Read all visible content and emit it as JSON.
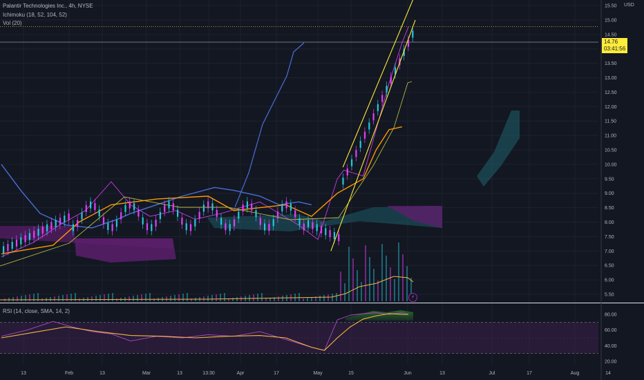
{
  "header": {
    "symbol": "Palantir Technologies Inc., 4h, NYSE",
    "ichimoku_label": "Ichimoku (18, 52, 104, 52)",
    "volume_label": "Vol (20)",
    "rsi_label": "RSI (14, close, SMA, 14, 2)",
    "currency": "USD"
  },
  "price_badge": {
    "price": "14.76",
    "countdown": "03:41:56"
  },
  "event_icon": "lightning-icon",
  "colors": {
    "background": "#131722",
    "price_line_blue": "#4a6fd8",
    "kijun_orange": "#ff9800",
    "senkou_b_olive": "#b5b841",
    "trendline_yellow": "#ffeb3b",
    "candle_purple": "#e040fb",
    "candle_teal": "#26c6da",
    "cloud_purple": "#5c1e6b",
    "cloud_teal": "#1e5b66",
    "rsi_line": "#b04ac2",
    "rsi_ma": "#f4b940",
    "rsi_band": "#3b1f4a"
  },
  "chart_data": [
    {
      "type": "line",
      "title": "Palantir Technologies Inc., 4h, NYSE",
      "ylabel": "USD",
      "ylim": [
        5.2,
        16.0
      ],
      "y_ticks": [
        "15.50",
        "15.00",
        "14.50",
        "14.00",
        "13.50",
        "13.00",
        "12.50",
        "12.00",
        "11.50",
        "11.00",
        "10.50",
        "10.00",
        "9.50",
        "9.00",
        "8.50",
        "8.00",
        "7.50",
        "7.00",
        "6.50",
        "6.00",
        "5.50"
      ],
      "x_ticks": [
        "13",
        "Feb",
        "13",
        "Mar",
        "13",
        "13:30",
        "Apr",
        "17",
        "May",
        "15",
        "Jun",
        "13",
        "Jul",
        "17",
        "Aug",
        "14"
      ],
      "series": [
        {
          "name": "Ichimoku close (lagging)",
          "x": [
            0,
            3,
            6,
            10,
            14,
            18,
            20,
            24,
            28,
            33,
            36,
            40,
            43,
            46,
            48
          ],
          "y": [
            10.0,
            9.1,
            8.3,
            7.9,
            7.8,
            8.1,
            8.3,
            8.6,
            8.9,
            9.2,
            9.1,
            8.9,
            8.6,
            8.7,
            8.6
          ]
        },
        {
          "name": "price",
          "x": [
            0,
            5,
            9,
            13,
            17,
            20,
            23,
            27,
            30,
            34,
            37,
            40,
            43,
            46,
            49,
            52,
            53,
            56,
            58,
            60,
            62,
            63
          ],
          "y": [
            6.8,
            7.3,
            7.9,
            8.4,
            9.4,
            8.6,
            8.2,
            8.4,
            8.1,
            8.3,
            8.5,
            8.7,
            8.3,
            7.9,
            7.4,
            9.5,
            9.8,
            9.6,
            11.2,
            12.8,
            14.2,
            14.76
          ]
        },
        {
          "name": "Kijun",
          "x": [
            0,
            8,
            12,
            17,
            24,
            32,
            36,
            40,
            44,
            48,
            52,
            56,
            58,
            60,
            62
          ],
          "y": [
            6.9,
            7.2,
            8.0,
            8.6,
            8.8,
            8.9,
            8.4,
            8.5,
            8.6,
            8.2,
            9.0,
            9.5,
            10.5,
            11.2,
            11.3
          ]
        },
        {
          "name": "Trend upper",
          "x": [
            52,
            63
          ],
          "y": [
            9.9,
            15.9
          ]
        },
        {
          "name": "Trend lower",
          "x": [
            51,
            63
          ],
          "y": [
            7.0,
            15.0
          ]
        }
      ]
    },
    {
      "type": "line",
      "title": "RSI (14, close, SMA, 14, 2)",
      "ylim": [
        16,
        90
      ],
      "y_ticks": [
        "80.00",
        "60.00",
        "40.00",
        "20.00"
      ],
      "bands": [
        30,
        70
      ],
      "series": [
        {
          "name": "RSI",
          "x": [
            0,
            4,
            8,
            11,
            14,
            17,
            20,
            24,
            28,
            32,
            36,
            40,
            44,
            48,
            50,
            52,
            54,
            56,
            58,
            60,
            62,
            63
          ],
          "y": [
            52,
            60,
            71,
            64,
            58,
            55,
            46,
            52,
            50,
            54,
            52,
            58,
            48,
            38,
            34,
            73,
            79,
            81,
            82,
            80,
            82,
            80
          ]
        },
        {
          "name": "RSI SMA",
          "x": [
            0,
            5,
            10,
            15,
            20,
            25,
            30,
            35,
            40,
            44,
            48,
            50,
            52,
            54,
            56,
            58,
            60,
            62,
            63
          ],
          "y": [
            50,
            57,
            64,
            58,
            53,
            52,
            50,
            52,
            53,
            50,
            38,
            34,
            50,
            64,
            74,
            78,
            81,
            80,
            80
          ]
        }
      ]
    }
  ]
}
